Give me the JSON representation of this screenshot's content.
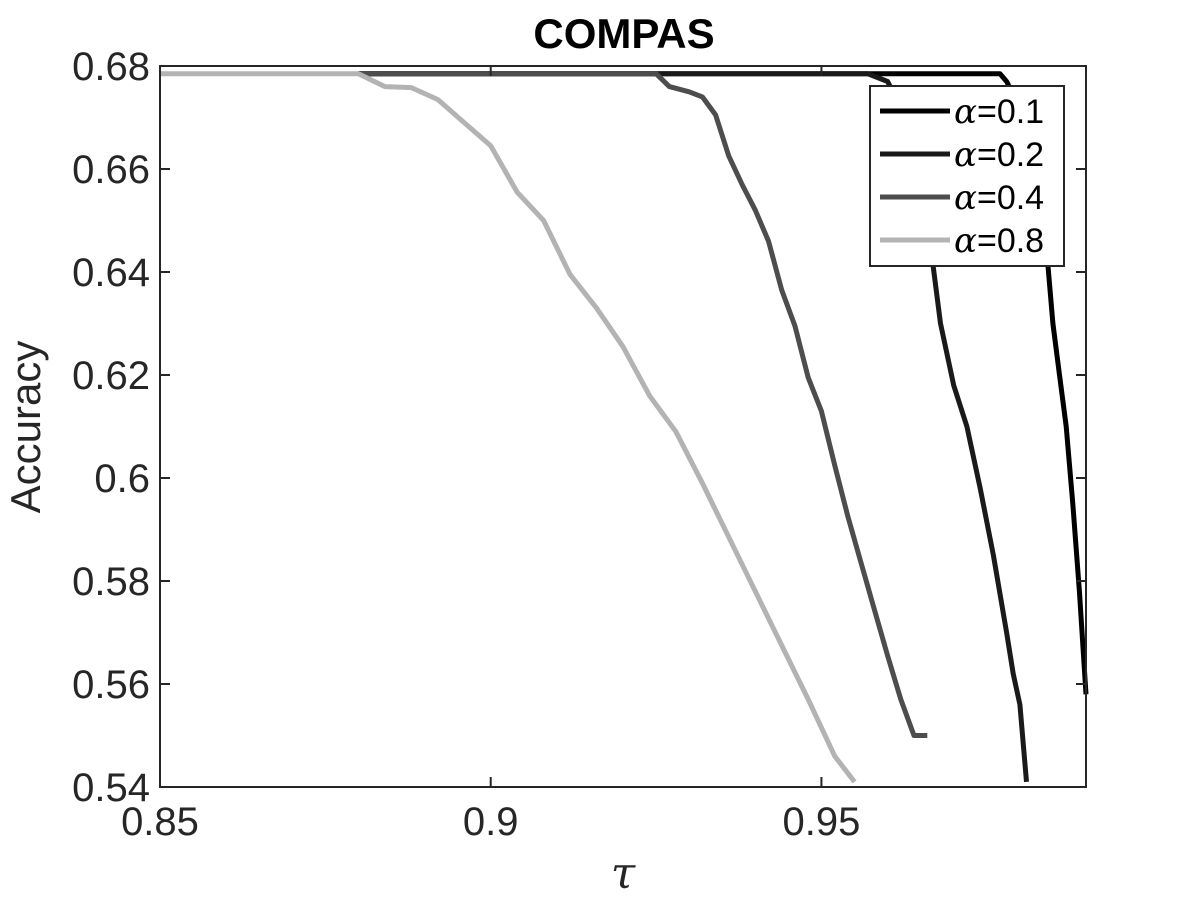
{
  "chart_data": {
    "type": "line",
    "title": "COMPAS",
    "xlabel": "τ",
    "ylabel": "Accuracy",
    "xlim": [
      0.85,
      0.99
    ],
    "ylim": [
      0.54,
      0.68
    ],
    "xticks": [
      0.85,
      0.9,
      0.95
    ],
    "xtick_labels": [
      "0.85",
      "0.9",
      "0.95"
    ],
    "yticks": [
      0.54,
      0.56,
      0.58,
      0.6,
      0.62,
      0.64,
      0.66,
      0.68
    ],
    "ytick_labels": [
      "0.54",
      "0.56",
      "0.58",
      "0.6",
      "0.62",
      "0.64",
      "0.66",
      "0.68"
    ],
    "grid": false,
    "legend_position": "top-right",
    "series": [
      {
        "name_symbol": "α",
        "name_value": "=0.1",
        "color": "#000000",
        "x": [
          0.88,
          0.92,
          0.96,
          0.977,
          0.978,
          0.98,
          0.982,
          0.984,
          0.985,
          0.986,
          0.987,
          0.988,
          0.989,
          0.99
        ],
        "y": [
          0.6785,
          0.6785,
          0.6785,
          0.6785,
          0.677,
          0.672,
          0.66,
          0.645,
          0.63,
          0.62,
          0.61,
          0.595,
          0.578,
          0.558
        ]
      },
      {
        "name_symbol": "α",
        "name_value": "=0.2",
        "color": "#1a1a1a",
        "x": [
          0.88,
          0.93,
          0.957,
          0.96,
          0.962,
          0.964,
          0.966,
          0.968,
          0.97,
          0.972,
          0.974,
          0.976,
          0.978,
          0.979,
          0.98,
          0.981
        ],
        "y": [
          0.6785,
          0.6785,
          0.6785,
          0.677,
          0.672,
          0.665,
          0.65,
          0.63,
          0.618,
          0.61,
          0.598,
          0.585,
          0.57,
          0.562,
          0.556,
          0.541
        ]
      },
      {
        "name_symbol": "α",
        "name_value": "=0.4",
        "color": "#4d4d4d",
        "x": [
          0.88,
          0.925,
          0.927,
          0.93,
          0.932,
          0.934,
          0.936,
          0.938,
          0.94,
          0.942,
          0.944,
          0.946,
          0.948,
          0.95,
          0.952,
          0.954,
          0.956,
          0.958,
          0.96,
          0.962,
          0.964,
          0.966
        ],
        "y": [
          0.6785,
          0.6785,
          0.676,
          0.675,
          0.674,
          0.6705,
          0.6625,
          0.657,
          0.652,
          0.646,
          0.6365,
          0.6295,
          0.6195,
          0.613,
          0.6025,
          0.5925,
          0.5835,
          0.5745,
          0.5655,
          0.557,
          0.55,
          0.55
        ]
      },
      {
        "name_symbol": "α",
        "name_value": "=0.8",
        "color": "#b3b3b3",
        "x": [
          0.85,
          0.88,
          0.884,
          0.888,
          0.892,
          0.896,
          0.9,
          0.904,
          0.908,
          0.912,
          0.916,
          0.92,
          0.924,
          0.928,
          0.932,
          0.936,
          0.94,
          0.944,
          0.948,
          0.952,
          0.955
        ],
        "y": [
          0.6785,
          0.6785,
          0.676,
          0.6758,
          0.6735,
          0.669,
          0.6645,
          0.6555,
          0.65,
          0.6395,
          0.633,
          0.6255,
          0.616,
          0.609,
          0.599,
          0.5885,
          0.578,
          0.5675,
          0.557,
          0.546,
          0.541
        ]
      }
    ]
  }
}
